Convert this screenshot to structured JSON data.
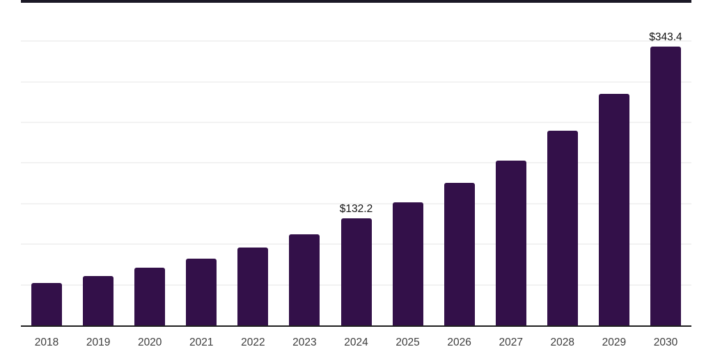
{
  "chart_data": {
    "type": "bar",
    "title": "",
    "xlabel": "",
    "ylabel": "",
    "categories": [
      "2018",
      "2019",
      "2020",
      "2021",
      "2022",
      "2023",
      "2024",
      "2025",
      "2026",
      "2027",
      "2028",
      "2029",
      "2030"
    ],
    "values": [
      52.1,
      60.6,
      71.2,
      82.4,
      96.3,
      112.4,
      132.2,
      151.6,
      175.4,
      203.3,
      239.4,
      284.9,
      343.4
    ],
    "labeled_points": [
      {
        "category": "2024",
        "label": "$132.2"
      },
      {
        "category": "2030",
        "label": "$343.4"
      }
    ],
    "ylim": [
      0,
      355
    ],
    "grid": true,
    "grid_step": 50,
    "legend": false,
    "y_axis_labels_visible": false,
    "colors": {
      "bar": "#331049",
      "axis_line": "#1f1f1f",
      "gridline": "#f2f2f2",
      "top_border": "#1b1926",
      "value_label": "#111111",
      "tick_label": "#3c3c3c",
      "background": "#ffffff"
    }
  }
}
